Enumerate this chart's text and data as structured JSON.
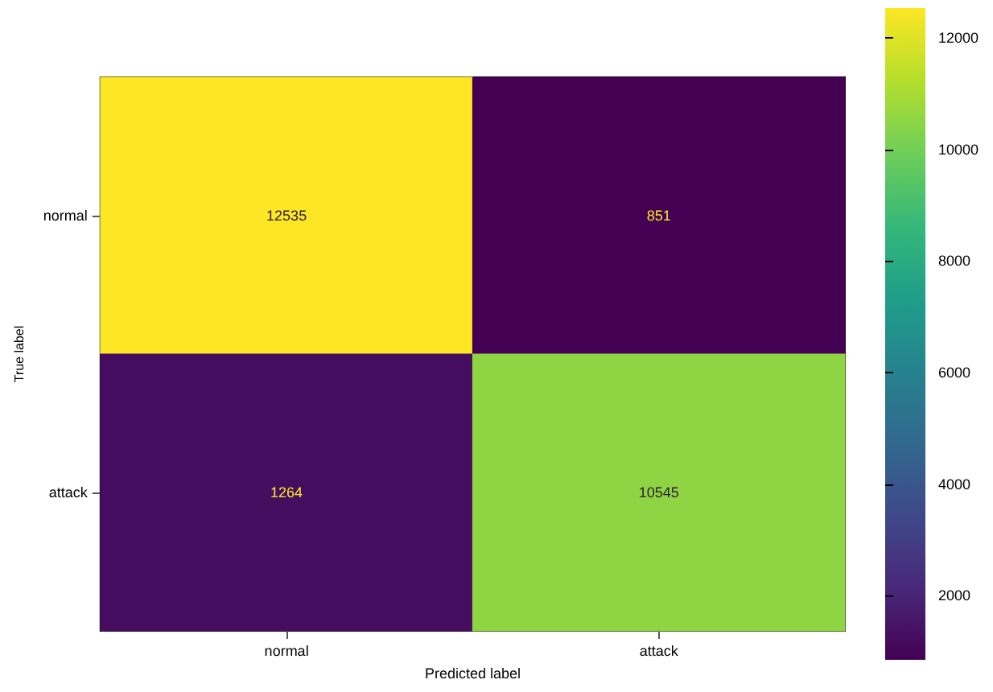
{
  "chart_data": {
    "type": "heatmap",
    "xlabel": "Predicted label",
    "ylabel": "True label",
    "categories": [
      "normal",
      "attack"
    ],
    "y_categories": [
      "normal",
      "attack"
    ],
    "cells": [
      [
        12535,
        851
      ],
      [
        1264,
        10545
      ]
    ],
    "clim": [
      851,
      12535
    ],
    "cticks": [
      2000,
      4000,
      6000,
      8000,
      10000,
      12000
    ],
    "data_labels": true,
    "grid": false
  }
}
